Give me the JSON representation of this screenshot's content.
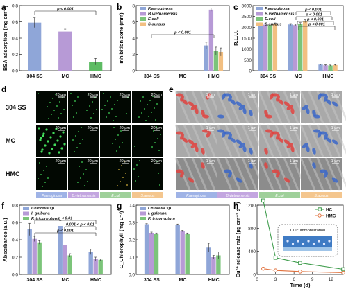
{
  "chart_data": [
    {
      "panel": "a",
      "type": "bar",
      "ylabel": "BSA adsorption (mg cm⁻²)",
      "categories": [
        "304 SS",
        "MC",
        "HMC"
      ],
      "values": [
        0.59,
        0.48,
        0.11
      ],
      "errors": [
        0.06,
        0.03,
        0.04
      ],
      "ylim": [
        0,
        0.8
      ],
      "yticks": [
        "0.0",
        "0.2",
        "0.4",
        "0.6",
        "0.8"
      ],
      "colors": [
        "#8fa6d8",
        "#b79ad6",
        "#5dbb63"
      ],
      "annotations": [
        "p < 0.001"
      ]
    },
    {
      "panel": "b",
      "type": "bar",
      "ylabel": "Inhibition zone (mm)",
      "categories": [
        "304 SS",
        "MC",
        "HMC"
      ],
      "series": [
        {
          "name": "P.aeruginosa",
          "values": [
            0,
            0,
            3.1
          ],
          "errors": [
            0,
            0,
            0.4
          ],
          "color": "#8fa6d8"
        },
        {
          "name": "B.vietnamensis",
          "values": [
            0,
            0,
            7.5
          ],
          "errors": [
            0,
            0,
            0.2
          ],
          "color": "#b79ad6"
        },
        {
          "name": "E.coli",
          "values": [
            0,
            0,
            2.4
          ],
          "errors": [
            0,
            0,
            0.5
          ],
          "color": "#7cc47a"
        },
        {
          "name": "S.aureus",
          "values": [
            0,
            0,
            2.3
          ],
          "errors": [
            0,
            0,
            0.5
          ],
          "color": "#f2bf82"
        }
      ],
      "ylim": [
        0,
        8
      ],
      "yticks": [
        "0",
        "2",
        "4",
        "6",
        "8"
      ],
      "legend": "top-left",
      "annotations": [
        "p < 0.001"
      ]
    },
    {
      "panel": "c",
      "type": "bar",
      "ylabel": "R.L.U.",
      "categories": [
        "304 SS",
        "MC",
        "HMC"
      ],
      "series": [
        {
          "name": "P.aeruginosa",
          "values": [
            2150,
            2130,
            280
          ],
          "errors": [
            60,
            40,
            20
          ],
          "color": "#8fa6d8"
        },
        {
          "name": "B.vietnamensis",
          "values": [
            2120,
            2100,
            250
          ],
          "errors": [
            50,
            40,
            20
          ],
          "color": "#b79ad6"
        },
        {
          "name": "E.coli",
          "values": [
            2100,
            2160,
            240
          ],
          "errors": [
            60,
            50,
            20
          ],
          "color": "#7cc47a"
        },
        {
          "name": "S.aureus",
          "values": [
            2150,
            2280,
            260
          ],
          "errors": [
            50,
            60,
            20
          ],
          "color": "#f2bf82"
        }
      ],
      "ylim": [
        0,
        3000
      ],
      "yticks": [
        "0",
        "500",
        "1000",
        "1500",
        "2000",
        "2500",
        "3000"
      ],
      "legend": "top-left",
      "annotations": [
        "p < 0.001",
        "p < 0.001",
        "p < 0.001",
        "p < 0.001"
      ]
    },
    {
      "panel": "f",
      "type": "bar",
      "ylabel": "Absorbance (a.u.)",
      "categories": [
        "304 SS",
        "MC",
        "HMC"
      ],
      "series": [
        {
          "name": "Chlorella sp.",
          "values": [
            0.52,
            0.56,
            0.26
          ],
          "errors": [
            0.07,
            0.06,
            0.03
          ],
          "color": "#8fa6d8"
        },
        {
          "name": "I. galbana",
          "values": [
            0.41,
            0.34,
            0.18
          ],
          "errors": [
            0.03,
            0.08,
            0.02
          ],
          "color": "#b79ad6"
        },
        {
          "name": "P. tricornutum",
          "values": [
            0.37,
            0.22,
            0.17
          ],
          "errors": [
            0.02,
            0.02,
            0.01
          ],
          "color": "#7cc47a"
        }
      ],
      "ylim": [
        0,
        0.8
      ],
      "yticks": [
        "0.0",
        "0.2",
        "0.4",
        "0.6",
        "0.8"
      ],
      "legend": "top-left",
      "annotations": [
        "p < 0.01",
        "0.001 < p < 0.01",
        "p < 0.001"
      ]
    },
    {
      "panel": "g",
      "type": "bar",
      "ylabel": "C_Chlorophyll (mg L⁻¹)",
      "categories": [
        "304 SS",
        "MC",
        "HMC"
      ],
      "series": [
        {
          "name": "Chlorella sp.",
          "values": [
            0.29,
            0.288,
            0.155
          ],
          "errors": [
            0.003,
            0.003,
            0.025
          ],
          "color": "#8fa6d8"
        },
        {
          "name": "I. galbana",
          "values": [
            0.24,
            0.25,
            0.1
          ],
          "errors": [
            0.004,
            0.004,
            0.01
          ],
          "color": "#b79ad6"
        },
        {
          "name": "P. tricornutum",
          "values": [
            0.235,
            0.235,
            0.11
          ],
          "errors": [
            0.004,
            0.004,
            0.02
          ],
          "color": "#7cc47a"
        }
      ],
      "ylim": [
        0,
        0.4
      ],
      "yticks": [
        "0.0",
        "0.1",
        "0.2",
        "0.3",
        "0.4"
      ],
      "legend": "top-left"
    },
    {
      "panel": "h",
      "type": "line",
      "xlabel": "Time (d)",
      "ylabel": "Cu²⁺ release rate (µg cm⁻² d⁻¹)",
      "x": [
        1,
        3,
        7,
        14
      ],
      "series": [
        {
          "name": "HC",
          "values": [
            1280,
            290,
            200,
            90
          ],
          "color": "#3c9b4a",
          "marker": "square"
        },
        {
          "name": "HMC",
          "values": [
            100,
            70,
            50,
            30
          ],
          "color": "#e0703c",
          "marker": "circle"
        }
      ],
      "xlim": [
        0,
        14
      ],
      "ylim": [
        0,
        1200
      ],
      "xticks": [
        "0",
        "3",
        "6",
        "9",
        "12"
      ],
      "yticks": [
        "0",
        "400",
        "800",
        "1200"
      ],
      "legend": "top-right",
      "annotations": [
        "Cu²⁺ immobilization"
      ]
    }
  ],
  "panels": {
    "a": "a",
    "b": "b",
    "c": "c",
    "d": "d",
    "e": "e",
    "f": "f",
    "g": "g",
    "h": "h"
  },
  "micrographs": {
    "row_labels": [
      "304 SS",
      "MC",
      "HMC"
    ],
    "scale_d": "20 µm",
    "scale_e": "1 µm",
    "columns": [
      "P.aeruginosa",
      "B.vietnamensis",
      "E.coli",
      "S.aureus"
    ],
    "column_colors": [
      "#9fb3e6",
      "#c3a6e0",
      "#9fd09a",
      "#f4c68e"
    ],
    "e_cell_colors": [
      "#e0433f",
      "#3b67c9",
      "#e0433f",
      "#3b67c9"
    ]
  }
}
